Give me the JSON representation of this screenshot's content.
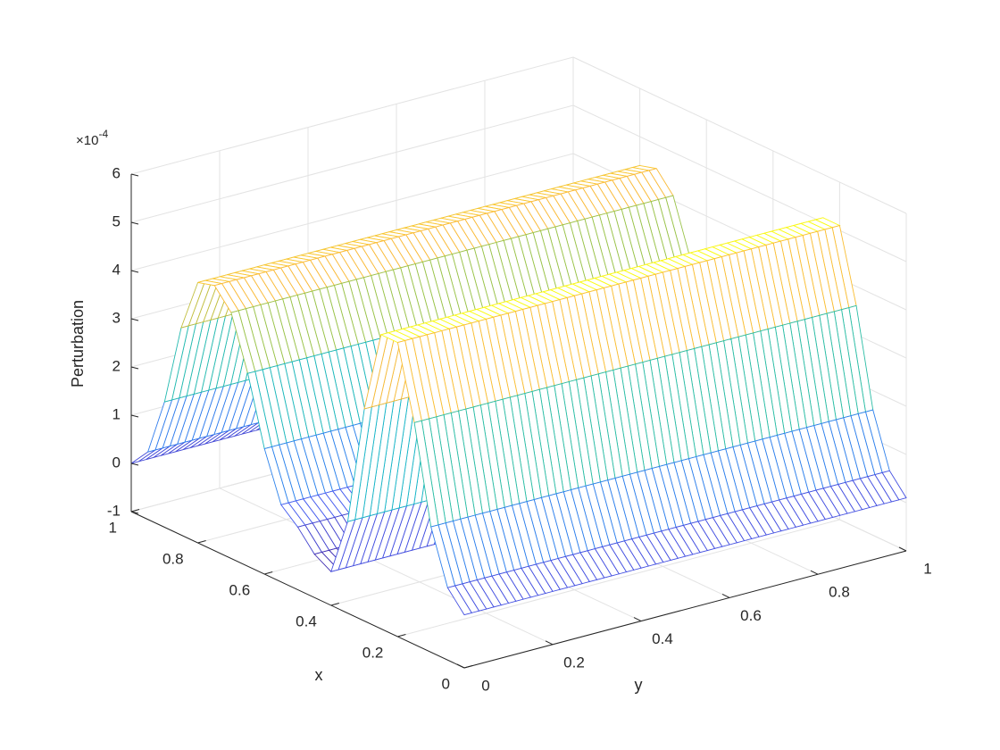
{
  "chart_data": {
    "type": "mesh",
    "colormap": "parula",
    "x_label": "x",
    "y_label": "y",
    "z_label": "Perturbation",
    "z_multiplier": {
      "base": "×10",
      "exponent": "-4"
    },
    "x": [
      0,
      0.05,
      0.1,
      0.15,
      0.2,
      0.25,
      0.3,
      0.35,
      0.4,
      0.45,
      0.5,
      0.55,
      0.6,
      0.65,
      0.7,
      0.75,
      0.8,
      0.85,
      0.9,
      0.95,
      1
    ],
    "z": [
      0.1,
      0.5,
      1.6,
      3.6,
      5.1,
      5.1,
      3.4,
      0.9,
      -0.3,
      -0.1,
      0.3,
      0.6,
      1.6,
      3.0,
      4.1,
      4.5,
      4.4,
      3.3,
      1.6,
      0.4,
      0.0
    ],
    "xlim": [
      0,
      1
    ],
    "ylim": [
      0,
      1
    ],
    "zlim": [
      -1,
      6
    ],
    "xticks": [
      0,
      0.2,
      0.4,
      0.6,
      0.8,
      1
    ],
    "yticks": [
      0,
      0.2,
      0.4,
      0.6,
      0.8,
      1
    ],
    "zticks": [
      -1,
      0,
      1,
      2,
      3,
      4,
      5,
      6
    ],
    "grid": true
  }
}
